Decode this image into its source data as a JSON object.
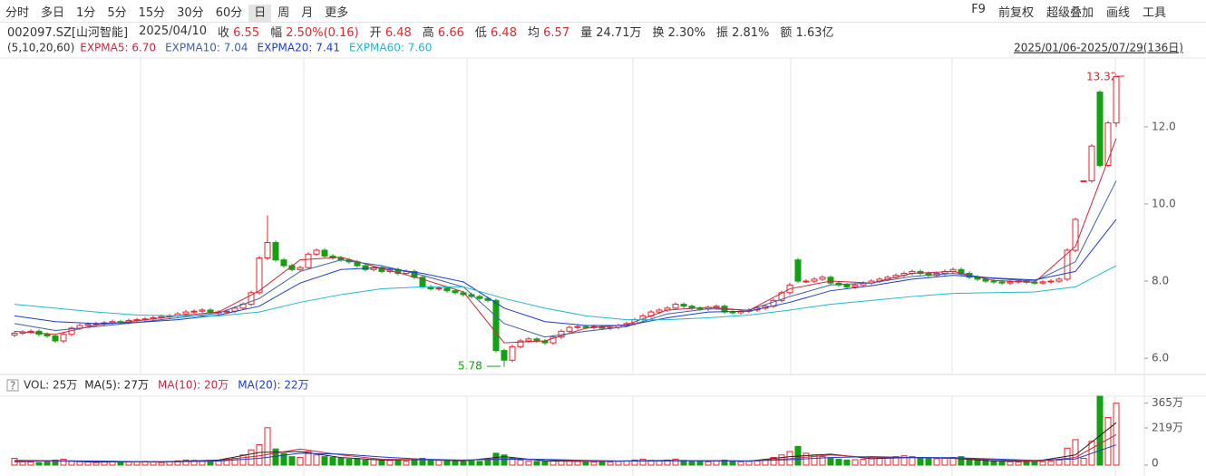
{
  "toolbar": {
    "tabs": [
      "分时",
      "多日",
      "1分",
      "5分",
      "15分",
      "30分",
      "60分",
      "日",
      "周",
      "月",
      "更多"
    ],
    "active": 7,
    "right": [
      "F9",
      "前复权",
      "超级叠加",
      "画线",
      "工具"
    ]
  },
  "info": {
    "code": "002097.SZ[山河智能]",
    "date": "2025/04/10",
    "items": [
      {
        "label": "收",
        "value": "6.55",
        "color": "#e0282e"
      },
      {
        "label": "幅",
        "value": "2.50%(0.16)",
        "color": "#e0282e"
      },
      {
        "label": "开",
        "value": "6.48",
        "color": "#e0282e"
      },
      {
        "label": "高",
        "value": "6.66",
        "color": "#e0282e"
      },
      {
        "label": "低",
        "value": "6.48",
        "color": "#e0282e"
      },
      {
        "label": "均",
        "value": "6.57",
        "color": "#e0282e"
      },
      {
        "label": "量",
        "value": "24.71万",
        "color": "#333333"
      },
      {
        "label": "换",
        "value": "2.30%",
        "color": "#333333"
      },
      {
        "label": "振",
        "value": "2.81%",
        "color": "#333333"
      },
      {
        "label": "额",
        "value": "1.63亿",
        "color": "#333333"
      }
    ]
  },
  "chart_data": [
    {
      "type": "candlestick",
      "legend_prefix": "(5,10,20,60)",
      "date_range": "2025/01/06-2025/07/29(136日)",
      "up_color": "#e8232b",
      "down_color": "#13a013",
      "ylim": [
        5.58,
        13.76
      ],
      "yticks": [
        {
          "value": 6,
          "label": "6.0"
        },
        {
          "value": 8,
          "label": "8.0"
        },
        {
          "value": 10,
          "label": "10.0"
        },
        {
          "value": 12,
          "label": "12.0"
        }
      ],
      "grid": false,
      "annotations": [
        "13.32",
        "5.78"
      ],
      "open": [
        6.6,
        6.65,
        6.68,
        6.7,
        6.62,
        6.58,
        6.45,
        6.62,
        6.78,
        6.85,
        6.88,
        6.9,
        6.92,
        6.95,
        6.93,
        6.98,
        7.0,
        7.02,
        7.05,
        7.08,
        7.1,
        7.15,
        7.2,
        7.22,
        7.25,
        7.18,
        7.2,
        7.22,
        7.3,
        7.4,
        7.7,
        8.6,
        9.0,
        8.55,
        8.4,
        8.3,
        8.35,
        8.7,
        8.8,
        8.65,
        8.6,
        8.55,
        8.5,
        8.4,
        8.3,
        8.35,
        8.25,
        8.3,
        8.2,
        8.25,
        8.1,
        7.85,
        7.8,
        7.82,
        7.75,
        7.7,
        7.65,
        7.6,
        7.55,
        7.5,
        6.2,
        5.95,
        6.3,
        6.45,
        6.5,
        6.45,
        6.4,
        6.55,
        6.7,
        6.8,
        6.82,
        6.8,
        6.82,
        6.78,
        6.8,
        6.85,
        6.9,
        7.0,
        7.1,
        7.2,
        7.25,
        7.3,
        7.4,
        7.35,
        7.3,
        7.28,
        7.32,
        7.35,
        7.2,
        7.18,
        7.22,
        7.25,
        7.3,
        7.35,
        7.5,
        7.7,
        8.55,
        8.0,
        8.0,
        8.05,
        8.1,
        7.95,
        7.9,
        7.85,
        7.9,
        7.95,
        8.0,
        8.05,
        8.1,
        8.15,
        8.2,
        8.25,
        8.2,
        8.15,
        8.2,
        8.25,
        8.3,
        8.2,
        8.1,
        8.05,
        8.0,
        7.98,
        7.95,
        7.98,
        8.0,
        7.97,
        7.95,
        7.98,
        8.0,
        8.05,
        8.8,
        10.6,
        10.6,
        12.9,
        11.0,
        12.1
      ],
      "high": [
        6.7,
        6.73,
        6.75,
        6.75,
        6.67,
        6.63,
        6.67,
        6.83,
        6.9,
        6.93,
        6.95,
        6.97,
        7.0,
        7.0,
        7.03,
        7.05,
        7.07,
        7.1,
        7.13,
        7.15,
        7.2,
        7.25,
        7.27,
        7.3,
        7.3,
        7.25,
        7.27,
        7.35,
        7.45,
        7.75,
        8.65,
        9.7,
        9.05,
        8.6,
        8.45,
        8.4,
        8.75,
        8.85,
        8.85,
        8.7,
        8.65,
        8.6,
        8.55,
        8.45,
        8.4,
        8.4,
        8.35,
        8.35,
        8.3,
        8.3,
        8.15,
        7.9,
        7.87,
        7.87,
        7.8,
        7.75,
        7.7,
        7.65,
        7.6,
        7.55,
        6.25,
        6.35,
        6.5,
        6.55,
        6.55,
        6.5,
        6.6,
        6.75,
        6.85,
        6.87,
        6.87,
        6.87,
        6.87,
        6.85,
        6.9,
        6.95,
        7.05,
        7.15,
        7.25,
        7.3,
        7.35,
        7.45,
        7.45,
        7.4,
        7.35,
        7.37,
        7.4,
        7.4,
        7.25,
        7.27,
        7.3,
        7.35,
        7.4,
        7.55,
        7.75,
        7.95,
        8.6,
        8.05,
        8.1,
        8.15,
        8.15,
        8.0,
        7.95,
        7.95,
        8.0,
        8.05,
        8.1,
        8.15,
        8.2,
        8.25,
        8.3,
        8.3,
        8.25,
        8.25,
        8.3,
        8.35,
        8.35,
        8.25,
        8.15,
        8.1,
        8.05,
        8.03,
        8.03,
        8.05,
        8.05,
        8.02,
        8.03,
        8.05,
        8.1,
        8.85,
        9.65,
        10.6,
        11.55,
        12.95,
        12.15,
        13.32
      ],
      "low": [
        6.55,
        6.6,
        6.63,
        6.57,
        6.53,
        6.4,
        6.4,
        6.57,
        6.73,
        6.8,
        6.83,
        6.85,
        6.87,
        6.88,
        6.88,
        6.93,
        6.95,
        6.97,
        7.0,
        7.03,
        7.05,
        7.1,
        7.15,
        7.17,
        7.13,
        7.13,
        7.15,
        7.17,
        7.25,
        7.35,
        7.65,
        8.55,
        8.5,
        8.35,
        8.25,
        8.25,
        8.3,
        8.65,
        8.6,
        8.55,
        8.5,
        8.45,
        8.35,
        8.25,
        8.25,
        8.2,
        8.2,
        8.15,
        8.15,
        8.05,
        7.8,
        7.75,
        7.75,
        7.7,
        7.65,
        7.6,
        7.55,
        7.5,
        7.45,
        6.15,
        5.78,
        5.9,
        6.25,
        6.4,
        6.4,
        6.35,
        6.35,
        6.5,
        6.65,
        6.75,
        6.75,
        6.75,
        6.73,
        6.73,
        6.75,
        6.8,
        6.85,
        6.95,
        7.05,
        7.15,
        7.2,
        7.25,
        7.3,
        7.25,
        7.23,
        7.23,
        7.27,
        7.15,
        7.13,
        7.13,
        7.17,
        7.2,
        7.25,
        7.3,
        7.45,
        7.65,
        7.95,
        7.95,
        7.95,
        8.0,
        7.9,
        7.85,
        7.8,
        7.8,
        7.85,
        7.9,
        7.95,
        8.0,
        8.05,
        8.1,
        8.15,
        8.15,
        8.1,
        8.1,
        8.15,
        8.2,
        8.15,
        8.05,
        8.0,
        7.95,
        7.93,
        7.9,
        7.9,
        7.93,
        7.92,
        7.9,
        7.9,
        7.93,
        7.95,
        8.0,
        8.75,
        10.6,
        10.55,
        10.95,
        10.95,
        12.0
      ],
      "close": [
        6.65,
        6.68,
        6.7,
        6.62,
        6.58,
        6.45,
        6.62,
        6.78,
        6.85,
        6.88,
        6.9,
        6.92,
        6.95,
        6.93,
        6.98,
        7.0,
        7.02,
        7.05,
        7.08,
        7.1,
        7.15,
        7.2,
        7.22,
        7.25,
        7.18,
        7.2,
        7.22,
        7.3,
        7.4,
        7.7,
        8.6,
        9.0,
        8.55,
        8.4,
        8.3,
        8.35,
        8.7,
        8.8,
        8.65,
        8.6,
        8.55,
        8.5,
        8.4,
        8.3,
        8.35,
        8.25,
        8.3,
        8.2,
        8.25,
        8.1,
        7.85,
        7.8,
        7.82,
        7.75,
        7.7,
        7.65,
        7.6,
        7.55,
        7.5,
        6.2,
        5.95,
        6.3,
        6.45,
        6.5,
        6.45,
        6.4,
        6.55,
        6.7,
        6.8,
        6.82,
        6.8,
        6.82,
        6.78,
        6.8,
        6.85,
        6.9,
        7.0,
        7.1,
        7.2,
        7.25,
        7.3,
        7.4,
        7.35,
        7.3,
        7.28,
        7.32,
        7.35,
        7.2,
        7.18,
        7.22,
        7.25,
        7.3,
        7.35,
        7.5,
        7.7,
        7.9,
        8.0,
        8.0,
        8.05,
        8.1,
        7.95,
        7.9,
        7.85,
        7.9,
        7.95,
        8.0,
        8.05,
        8.1,
        8.15,
        8.2,
        8.25,
        8.2,
        8.15,
        8.2,
        8.25,
        8.3,
        8.2,
        8.1,
        8.05,
        8.0,
        7.98,
        7.95,
        7.98,
        8.0,
        7.97,
        7.95,
        7.98,
        8.0,
        8.05,
        8.8,
        9.6,
        10.6,
        11.5,
        11.0,
        12.1,
        13.3
      ],
      "line_x": [
        0,
        5,
        10,
        15,
        20,
        25,
        30,
        35,
        40,
        45,
        50,
        55,
        60,
        65,
        70,
        75,
        80,
        85,
        90,
        95,
        100,
        105,
        110,
        115,
        120,
        125,
        130,
        135
      ],
      "series": [
        {
          "name": "EXPMA5: 6.70",
          "color": "#d0243f",
          "values": [
            6.7,
            6.62,
            6.86,
            6.97,
            7.1,
            7.2,
            7.75,
            8.55,
            8.62,
            8.33,
            8.05,
            7.72,
            6.4,
            6.45,
            6.78,
            6.87,
            7.25,
            7.32,
            7.24,
            7.8,
            8.0,
            7.95,
            8.2,
            8.25,
            8.02,
            7.97,
            8.9,
            11.7
          ]
        },
        {
          "name": "EXPMA10: 7.04",
          "color": "#3d5fa8",
          "values": [
            6.9,
            6.72,
            6.82,
            6.93,
            7.05,
            7.17,
            7.55,
            8.25,
            8.55,
            8.4,
            8.15,
            7.85,
            6.9,
            6.55,
            6.7,
            6.82,
            7.15,
            7.28,
            7.25,
            7.6,
            7.9,
            7.95,
            8.12,
            8.2,
            8.07,
            8.0,
            8.5,
            10.6
          ]
        },
        {
          "name": "EXPMA20: 7.41",
          "color": "#1c3ccc",
          "values": [
            7.1,
            6.95,
            6.9,
            6.93,
            7.0,
            7.12,
            7.35,
            7.95,
            8.3,
            8.35,
            8.2,
            7.98,
            7.3,
            6.95,
            6.85,
            6.85,
            7.05,
            7.2,
            7.22,
            7.45,
            7.75,
            7.88,
            8.05,
            8.15,
            8.08,
            8.03,
            8.25,
            9.6
          ]
        },
        {
          "name": "EXPMA60: 7.60",
          "color": "#22b8cc",
          "values": [
            7.4,
            7.3,
            7.2,
            7.12,
            7.1,
            7.1,
            7.2,
            7.45,
            7.65,
            7.8,
            7.85,
            7.85,
            7.55,
            7.3,
            7.1,
            7.0,
            7.0,
            7.05,
            7.12,
            7.25,
            7.4,
            7.5,
            7.6,
            7.68,
            7.7,
            7.72,
            7.85,
            8.4
          ]
        }
      ]
    },
    {
      "type": "bar",
      "legend": "VOL: 25万",
      "ylim": [
        0,
        406
      ],
      "yticks": [
        0,
        {
          "value": 219,
          "label": "219万"
        },
        {
          "value": 365,
          "label": "365万"
        }
      ],
      "values": [
        40,
        20,
        18,
        15,
        20,
        30,
        35,
        25,
        20,
        18,
        15,
        18,
        20,
        15,
        18,
        20,
        22,
        18,
        15,
        20,
        25,
        30,
        28,
        22,
        25,
        30,
        35,
        40,
        60,
        90,
        120,
        220,
        95,
        70,
        50,
        45,
        80,
        60,
        50,
        45,
        40,
        35,
        38,
        30,
        32,
        30,
        28,
        30,
        25,
        35,
        40,
        30,
        28,
        25,
        22,
        20,
        25,
        22,
        30,
        70,
        60,
        40,
        30,
        25,
        22,
        20,
        25,
        30,
        28,
        22,
        20,
        18,
        20,
        18,
        22,
        25,
        30,
        35,
        28,
        25,
        30,
        35,
        28,
        25,
        22,
        20,
        25,
        30,
        22,
        20,
        22,
        25,
        30,
        45,
        60,
        80,
        110,
        70,
        60,
        50,
        40,
        35,
        30,
        32,
        35,
        38,
        40,
        45,
        50,
        55,
        50,
        45,
        40,
        38,
        40,
        45,
        50,
        40,
        35,
        30,
        25,
        22,
        20,
        18,
        20,
        22,
        20,
        25,
        30,
        100,
        150,
        40,
        140,
        406,
        280,
        365
      ],
      "line_x": [
        0,
        5,
        10,
        15,
        20,
        25,
        30,
        35,
        40,
        45,
        50,
        55,
        60,
        65,
        70,
        75,
        80,
        85,
        90,
        95,
        100,
        105,
        110,
        115,
        120,
        125,
        130,
        135
      ],
      "series": [
        {
          "name": "MA(5): 27万",
          "color": "#222222",
          "values": [
            20,
            26,
            18,
            19,
            22,
            30,
            75,
            80,
            45,
            30,
            32,
            25,
            50,
            25,
            22,
            25,
            28,
            25,
            24,
            50,
            65,
            38,
            45,
            40,
            24,
            22,
            60,
            250
          ]
        },
        {
          "name": "MA(10): 20万",
          "color": "#d0243f",
          "values": [
            25,
            24,
            22,
            19,
            20,
            27,
            55,
            95,
            60,
            35,
            32,
            28,
            38,
            32,
            22,
            24,
            26,
            26,
            25,
            38,
            60,
            45,
            45,
            42,
            32,
            22,
            45,
            180
          ]
        },
        {
          "name": "MA(20): 22万",
          "color": "#1c3ccc",
          "values": [
            28,
            26,
            24,
            21,
            20,
            24,
            40,
            70,
            65,
            48,
            35,
            30,
            35,
            34,
            28,
            24,
            25,
            26,
            25,
            32,
            45,
            50,
            45,
            44,
            36,
            28,
            36,
            120
          ]
        }
      ]
    }
  ]
}
